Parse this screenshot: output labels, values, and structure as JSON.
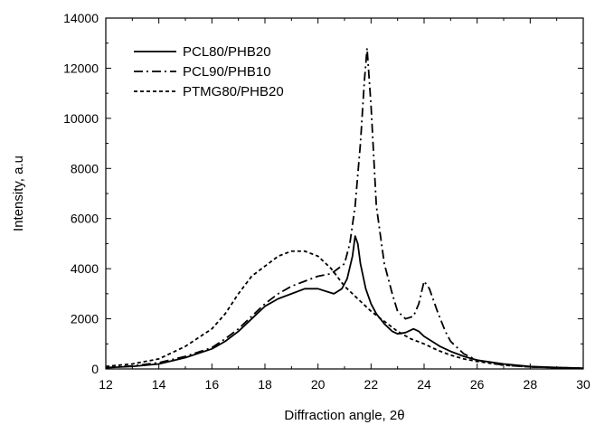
{
  "chart_data": {
    "type": "line",
    "title": "",
    "xlabel": "Diffraction angle, 2θ",
    "ylabel": "Intensity, a.u",
    "xlim": [
      12,
      30
    ],
    "ylim": [
      0,
      14000
    ],
    "xticks": [
      12,
      14,
      16,
      18,
      20,
      22,
      24,
      26,
      28,
      30
    ],
    "yticks": [
      0,
      2000,
      4000,
      6000,
      8000,
      10000,
      12000,
      14000
    ],
    "grid": false,
    "legend_position": "top-left",
    "series": [
      {
        "name": "PCL80/PHB20",
        "line_style": "solid",
        "color": "#000000",
        "x": [
          12,
          13,
          14,
          15,
          16,
          16.5,
          17,
          17.5,
          18,
          18.5,
          19,
          19.5,
          20,
          20.3,
          20.6,
          20.9,
          21.1,
          21.3,
          21.4,
          21.5,
          21.6,
          21.8,
          22,
          22.2,
          22.5,
          22.8,
          23,
          23.3,
          23.6,
          23.8,
          24,
          24.3,
          24.6,
          25,
          25.5,
          26,
          27,
          28,
          29,
          30
        ],
        "y": [
          50,
          100,
          200,
          450,
          800,
          1100,
          1500,
          2000,
          2500,
          2800,
          3000,
          3200,
          3200,
          3100,
          3000,
          3200,
          3600,
          4500,
          5300,
          5000,
          4200,
          3200,
          2600,
          2200,
          1800,
          1500,
          1400,
          1450,
          1600,
          1500,
          1300,
          1100,
          900,
          700,
          500,
          350,
          200,
          100,
          60,
          30
        ]
      },
      {
        "name": "PCL90/PHB10",
        "line_style": "dash-dot",
        "color": "#000000",
        "x": [
          12,
          13,
          14,
          15,
          16,
          16.5,
          17,
          17.5,
          18,
          18.5,
          19,
          19.5,
          20,
          20.5,
          21,
          21.2,
          21.4,
          21.6,
          21.75,
          21.85,
          22,
          22.2,
          22.5,
          22.8,
          23,
          23.3,
          23.6,
          23.8,
          24,
          24.2,
          24.5,
          24.8,
          25,
          25.5,
          26,
          27,
          28,
          29,
          30
        ],
        "y": [
          50,
          120,
          250,
          500,
          850,
          1200,
          1600,
          2100,
          2600,
          3000,
          3300,
          3500,
          3700,
          3800,
          4200,
          5000,
          6500,
          9000,
          11500,
          12800,
          10500,
          6500,
          4200,
          3000,
          2300,
          2000,
          2100,
          2600,
          3500,
          3200,
          2300,
          1500,
          1100,
          600,
          350,
          150,
          80,
          50,
          30
        ]
      },
      {
        "name": "PTMG80/PHB20",
        "line_style": "dashed",
        "color": "#000000",
        "x": [
          12,
          13,
          14,
          15,
          16,
          16.5,
          17,
          17.5,
          18,
          18.5,
          19,
          19.5,
          20,
          20.5,
          21,
          21.5,
          22,
          22.5,
          23,
          23.5,
          24,
          24.5,
          25,
          25.5,
          26,
          27,
          28,
          29,
          30
        ],
        "y": [
          100,
          200,
          400,
          900,
          1600,
          2200,
          3000,
          3700,
          4100,
          4500,
          4700,
          4700,
          4500,
          4000,
          3300,
          2800,
          2300,
          1900,
          1500,
          1200,
          1000,
          750,
          550,
          400,
          300,
          150,
          80,
          50,
          30
        ]
      }
    ]
  }
}
